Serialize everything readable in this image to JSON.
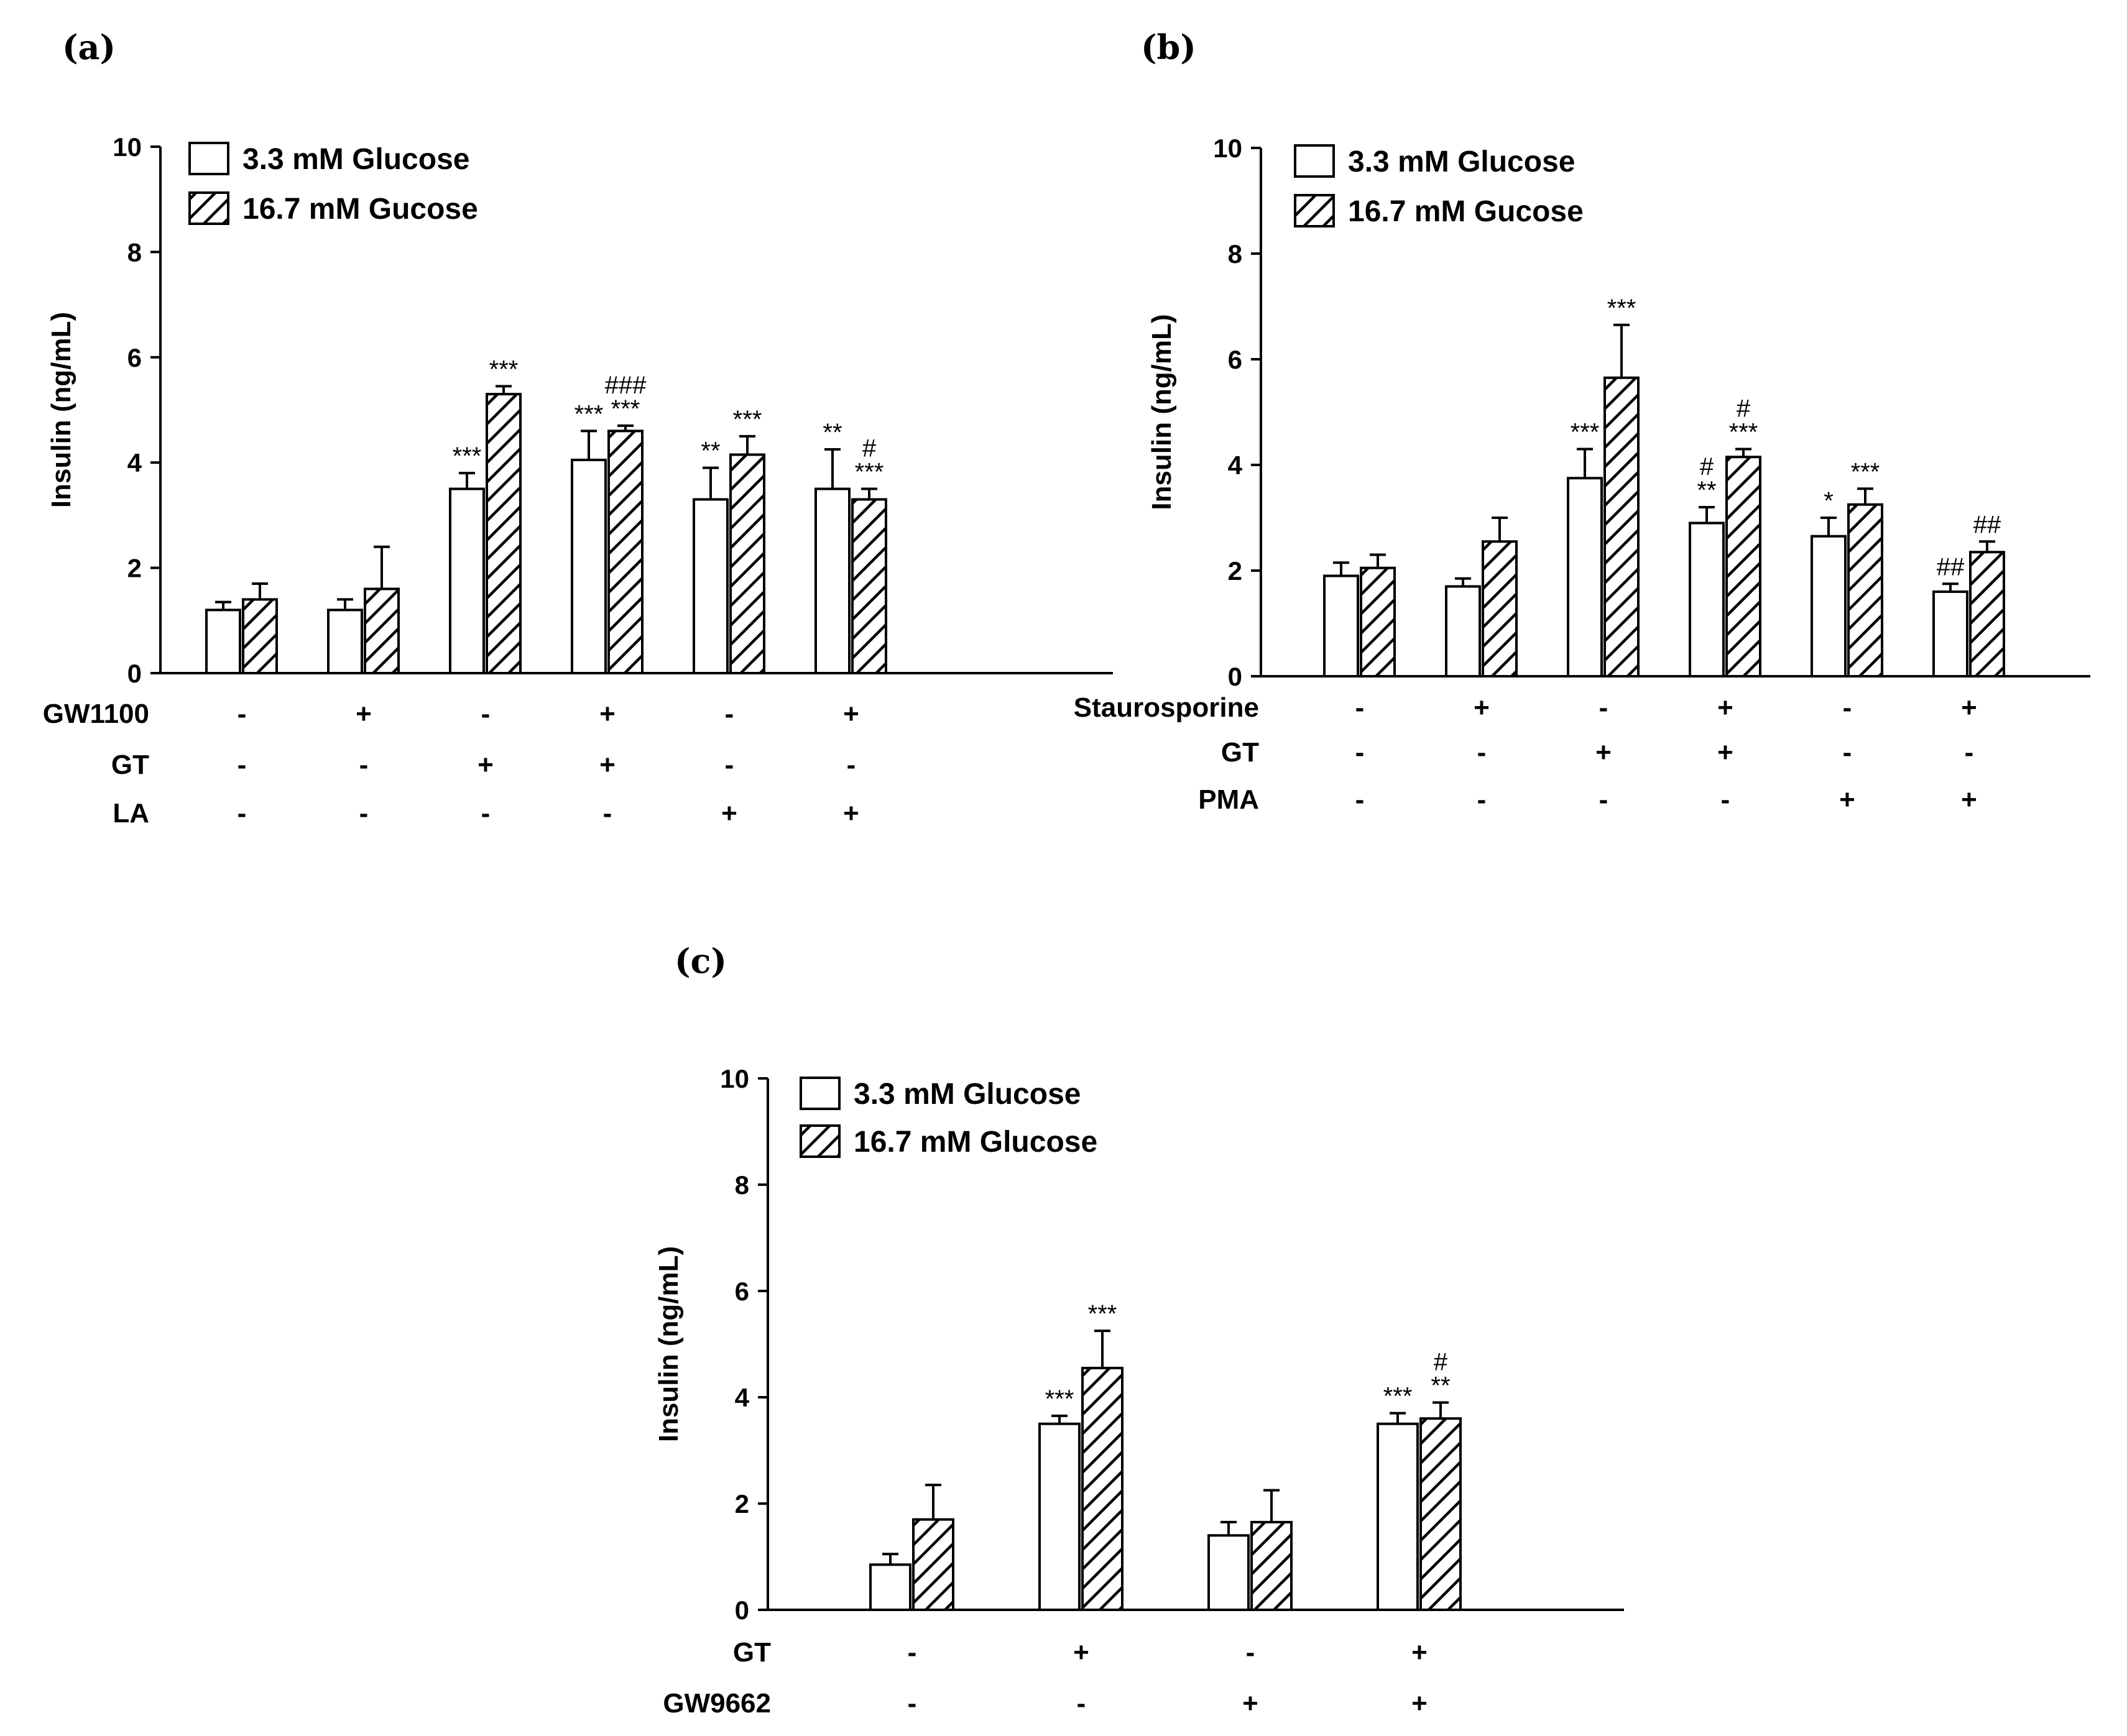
{
  "chart_data": [
    {
      "panel": "(a)",
      "type": "bar",
      "ylabel": "Insulin (ng/mL)",
      "ylim": [
        0,
        10
      ],
      "yticks": [
        0,
        2,
        4,
        6,
        8,
        10
      ],
      "legend": [
        "3.3 mM Glucose",
        "16.7 mM Gucose"
      ],
      "series": [
        {
          "name": "3.3 mM Glucose",
          "values": [
            1.2,
            1.2,
            3.5,
            4.05,
            3.3,
            3.5
          ],
          "errors": [
            0.15,
            0.2,
            0.3,
            0.55,
            0.6,
            0.75
          ],
          "sig": [
            "",
            "",
            "***",
            "***",
            "**",
            "**"
          ]
        },
        {
          "name": "16.7 mM Gucose",
          "values": [
            1.4,
            1.6,
            5.3,
            4.6,
            4.15,
            3.3
          ],
          "errors": [
            0.3,
            0.8,
            0.15,
            0.1,
            0.35,
            0.2
          ],
          "sig": [
            "",
            "",
            "***",
            "***\n###",
            "***",
            "***\n#"
          ]
        }
      ],
      "conditions": [
        {
          "label": "GW1100",
          "signs": [
            "-",
            "+",
            "-",
            "+",
            "-",
            "+"
          ]
        },
        {
          "label": "GT",
          "signs": [
            "-",
            "-",
            "+",
            "+",
            "-",
            "-"
          ]
        },
        {
          "label": "LA",
          "signs": [
            "-",
            "-",
            "-",
            "-",
            "+",
            "+"
          ]
        }
      ]
    },
    {
      "panel": "(b)",
      "type": "bar",
      "ylabel": "Insulin (ng/mL)",
      "ylim": [
        0,
        10
      ],
      "yticks": [
        0,
        2,
        4,
        6,
        8,
        10
      ],
      "legend": [
        "3.3 mM Glucose",
        "16.7 mM Gucose"
      ],
      "series": [
        {
          "name": "3.3 mM Glucose",
          "values": [
            1.9,
            1.7,
            3.75,
            2.9,
            2.65,
            1.6
          ],
          "errors": [
            0.25,
            0.15,
            0.55,
            0.3,
            0.35,
            0.15
          ],
          "sig": [
            "",
            "",
            "***",
            "**\n#",
            "*",
            "##"
          ]
        },
        {
          "name": "16.7 mM Gucose",
          "values": [
            2.05,
            2.55,
            5.65,
            4.15,
            3.25,
            2.35
          ],
          "errors": [
            0.25,
            0.45,
            1.0,
            0.15,
            0.3,
            0.2
          ],
          "sig": [
            "",
            "",
            "***",
            "***\n#",
            "***",
            "##"
          ]
        }
      ],
      "conditions": [
        {
          "label": "Staurosporine",
          "signs": [
            "-",
            "+",
            "-",
            "+",
            "-",
            "+"
          ]
        },
        {
          "label": "GT",
          "signs": [
            "-",
            "-",
            "+",
            "+",
            "-",
            "-"
          ]
        },
        {
          "label": "PMA",
          "signs": [
            "-",
            "-",
            "-",
            "-",
            "+",
            "+"
          ]
        }
      ]
    },
    {
      "panel": "(c)",
      "type": "bar",
      "ylabel": "Insulin (ng/mL)",
      "ylim": [
        0,
        10
      ],
      "yticks": [
        0,
        2,
        4,
        6,
        8,
        10
      ],
      "legend": [
        "3.3 mM Glucose",
        "16.7 mM Glucose"
      ],
      "series": [
        {
          "name": "3.3 mM Glucose",
          "values": [
            0.85,
            3.5,
            1.4,
            3.5
          ],
          "errors": [
            0.2,
            0.15,
            0.25,
            0.2
          ],
          "sig": [
            "",
            "***",
            "",
            "***"
          ]
        },
        {
          "name": "16.7 mM Glucose",
          "values": [
            1.7,
            4.55,
            1.65,
            3.6
          ],
          "errors": [
            0.65,
            0.7,
            0.6,
            0.3
          ],
          "sig": [
            "",
            "***",
            "",
            "**\n#"
          ]
        }
      ],
      "conditions": [
        {
          "label": "GT",
          "signs": [
            "-",
            "+",
            "-",
            "+"
          ]
        },
        {
          "label": "GW9662",
          "signs": [
            "-",
            "-",
            "+",
            "+"
          ]
        }
      ]
    }
  ]
}
